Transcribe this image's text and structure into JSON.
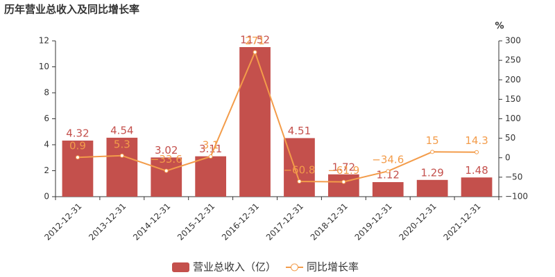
{
  "chart_data": {
    "type": "combo",
    "title": "历年营业总收入及同比增长率",
    "y2_label": "%",
    "categories": [
      "2012-12-31",
      "2013-12-31",
      "2014-12-31",
      "2015-12-31",
      "2016-12-31",
      "2017-12-31",
      "2018-12-31",
      "2019-12-31",
      "2020-12-31",
      "2021-12-31"
    ],
    "series": [
      {
        "name": "营业总收入（亿）",
        "type": "bar",
        "color": "#c4504c",
        "axis": "y",
        "values": [
          4.32,
          4.54,
          3.02,
          3.11,
          11.52,
          4.51,
          1.72,
          1.12,
          1.29,
          1.48
        ]
      },
      {
        "name": "同比增长率",
        "type": "line",
        "color": "#f39c4a",
        "axis": "y2",
        "values": [
          0.9,
          5.3,
          -33.6,
          3.1,
          271,
          -60.8,
          -61.9,
          -34.6,
          15,
          14.3
        ],
        "value_labels": [
          "0.9",
          "5.3",
          "−33.6",
          "3.1",
          "271",
          "−60.8",
          "−61.9",
          "−34.6",
          "15",
          "14.3"
        ]
      }
    ],
    "ylim": [
      0,
      12
    ],
    "yticks": [
      0,
      2,
      4,
      6,
      8,
      10,
      12
    ],
    "y2lim": [
      -100,
      300
    ],
    "y2ticks": [
      {
        "value": -100,
        "label": "−100"
      },
      {
        "value": -50,
        "label": "−50"
      },
      0,
      50,
      100,
      150,
      200,
      250,
      300
    ],
    "grid": false,
    "legend": "bottom"
  }
}
